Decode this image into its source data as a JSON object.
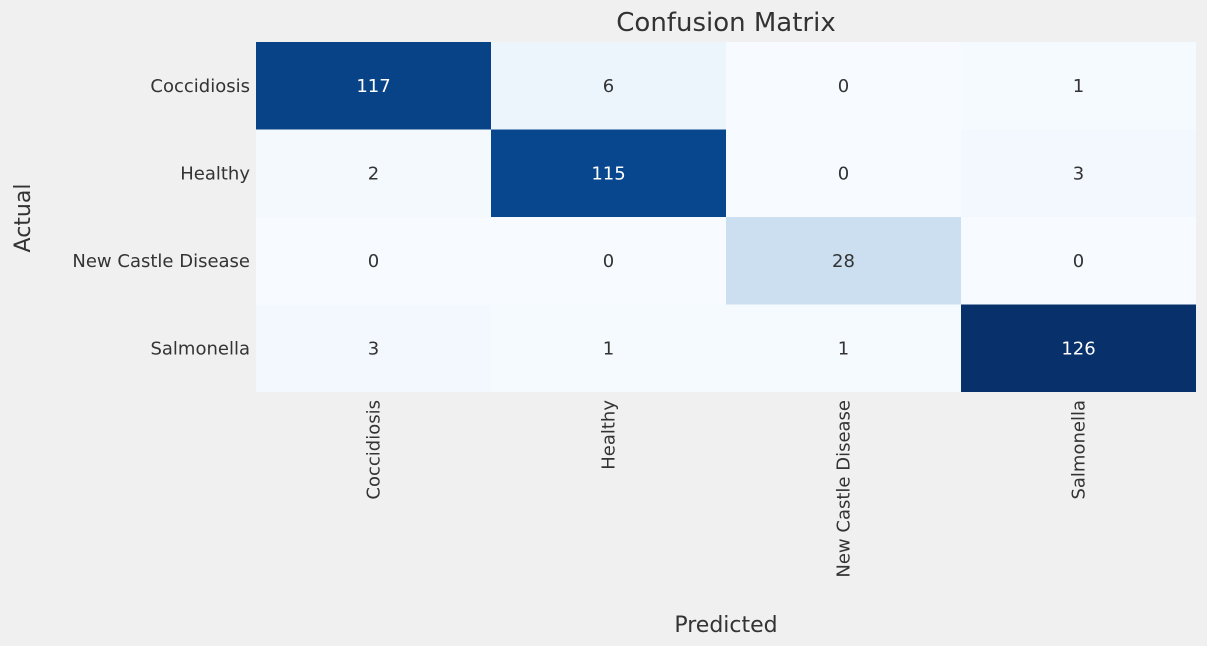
{
  "chart_data": {
    "type": "heatmap",
    "title": "Confusion Matrix",
    "xlabel": "Predicted",
    "ylabel": "Actual",
    "x_categories": [
      "Coccidiosis",
      "Healthy",
      "New Castle Disease",
      "Salmonella"
    ],
    "y_categories": [
      "Coccidiosis",
      "Healthy",
      "New Castle Disease",
      "Salmonella"
    ],
    "values": [
      [
        117,
        6,
        0,
        1
      ],
      [
        2,
        115,
        0,
        3
      ],
      [
        0,
        0,
        28,
        0
      ],
      [
        3,
        1,
        1,
        126
      ]
    ],
    "colormap": "Blues",
    "value_range": [
      0,
      126
    ],
    "colors": {
      "low": "#f7fbff",
      "high": "#08306b",
      "text_dark": "#333333",
      "text_light": "#ffffff",
      "background": "#f0f0f0"
    }
  }
}
